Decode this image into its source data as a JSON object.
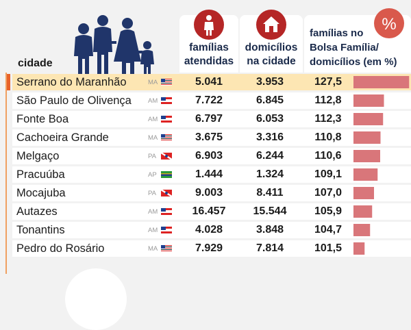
{
  "header": {
    "city": "cidade",
    "families_line1": "famílias",
    "families_line2": "atendidas",
    "households_line1": "domicílios",
    "households_line2": "na cidade",
    "share_line1": "famílias no",
    "share_line2": "Bolsa Família/",
    "share_line3": "domicílios (em %)",
    "pct_symbol": "%"
  },
  "icons": {
    "family": "family-icon",
    "person": "person-icon",
    "house": "house-icon",
    "percent": "percent-icon"
  },
  "colors": {
    "accent_red": "#b52626",
    "bar": "#d9767a",
    "highlight_row": "#fde6b3",
    "highlight_marker": "#e8622a",
    "icon_navy": "#20356a"
  },
  "chart_data": {
    "type": "table",
    "columns": [
      "cidade",
      "famílias atendidas",
      "domicílios na cidade",
      "famílias no Bolsa Família/ domicílios (em %)"
    ],
    "rows": [
      {
        "city": "Serrano do Maranhão",
        "state": "MA",
        "families": "5.041",
        "households": "3.953",
        "ratio_label": "127,5",
        "ratio": 127.5
      },
      {
        "city": "São Paulo de Olivença",
        "state": "AM",
        "families": "7.722",
        "households": "6.845",
        "ratio_label": "112,8",
        "ratio": 112.8
      },
      {
        "city": "Fonte Boa",
        "state": "AM",
        "families": "6.797",
        "households": "6.053",
        "ratio_label": "112,3",
        "ratio": 112.3
      },
      {
        "city": "Cachoeira Grande",
        "state": "MA",
        "families": "3.675",
        "households": "3.316",
        "ratio_label": "110,8",
        "ratio": 110.8
      },
      {
        "city": "Melgaço",
        "state": "PA",
        "families": "6.903",
        "households": "6.244",
        "ratio_label": "110,6",
        "ratio": 110.6
      },
      {
        "city": "Pracuúba",
        "state": "AP",
        "families": "1.444",
        "households": "1.324",
        "ratio_label": "109,1",
        "ratio": 109.1
      },
      {
        "city": "Mocajuba",
        "state": "PA",
        "families": "9.003",
        "households": "8.411",
        "ratio_label": "107,0",
        "ratio": 107.0
      },
      {
        "city": "Autazes",
        "state": "AM",
        "families": "16.457",
        "households": "15.544",
        "ratio_label": "105,9",
        "ratio": 105.9
      },
      {
        "city": "Tonantins",
        "state": "AM",
        "families": "4.028",
        "households": "3.848",
        "ratio_label": "104,7",
        "ratio": 104.7
      },
      {
        "city": "Pedro do Rosário",
        "state": "MA",
        "families": "7.929",
        "households": "7.814",
        "ratio_label": "101,5",
        "ratio": 101.5
      }
    ]
  }
}
